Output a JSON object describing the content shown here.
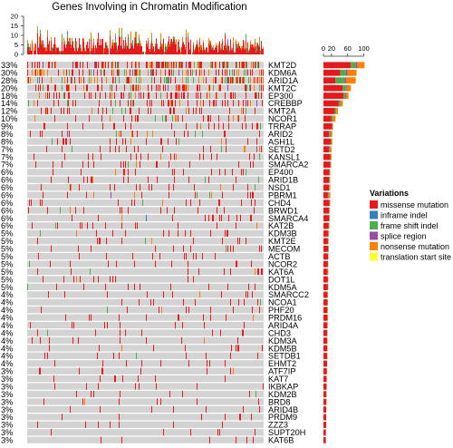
{
  "chart_data": {
    "type": "heatmap",
    "title": "Genes Involving in Chromatin Modification",
    "top_axis_ticks": [
      0,
      5,
      10,
      15,
      20
    ],
    "right_axis_ticks": [
      0,
      20,
      60,
      100
    ],
    "legend": {
      "title": "Variations",
      "placement": "right",
      "entries": [
        {
          "name": "missense mutation",
          "color": "#e41a1c"
        },
        {
          "name": "inframe indel",
          "color": "#377eb8"
        },
        {
          "name": "frame shift indel",
          "color": "#4daf4a"
        },
        {
          "name": "splice region",
          "color": "#984ea3"
        },
        {
          "name": "nonsense mutation",
          "color": "#ff7f00"
        },
        {
          "name": "translation start site",
          "color": "#ffff33"
        }
      ]
    },
    "genes": [
      {
        "gene": "KMT2D",
        "pct": "33%",
        "counts": [
          68,
          0,
          12,
          4,
          18,
          0
        ]
      },
      {
        "gene": "KDM6A",
        "pct": "30%",
        "counts": [
          42,
          0,
          14,
          4,
          22,
          0
        ]
      },
      {
        "gene": "ARID1A",
        "pct": "28%",
        "counts": [
          30,
          0,
          22,
          4,
          24,
          0
        ]
      },
      {
        "gene": "KMT2C",
        "pct": "20%",
        "counts": [
          48,
          0,
          8,
          2,
          10,
          0
        ]
      },
      {
        "gene": "EP300",
        "pct": "18%",
        "counts": [
          50,
          0,
          4,
          2,
          6,
          0
        ]
      },
      {
        "gene": "CREBBP",
        "pct": "14%",
        "counts": [
          38,
          0,
          4,
          1,
          5,
          0
        ]
      },
      {
        "gene": "KMT2A",
        "pct": "12%",
        "counts": [
          28,
          0,
          4,
          0,
          4,
          0
        ]
      },
      {
        "gene": "NCOR1",
        "pct": "10%",
        "counts": [
          20,
          0,
          4,
          0,
          6,
          0
        ]
      },
      {
        "gene": "TRRAP",
        "pct": "9%",
        "counts": [
          22,
          0,
          1,
          0,
          1,
          0
        ]
      },
      {
        "gene": "ARID2",
        "pct": "8%",
        "counts": [
          14,
          0,
          3,
          1,
          4,
          0
        ]
      },
      {
        "gene": "ASH1L",
        "pct": "8%",
        "counts": [
          18,
          0,
          2,
          0,
          2,
          0
        ]
      },
      {
        "gene": "SETD2",
        "pct": "7%",
        "counts": [
          14,
          0,
          2,
          1,
          3,
          0
        ]
      },
      {
        "gene": "KANSL1",
        "pct": "7%",
        "counts": [
          17,
          0,
          1,
          0,
          2,
          0
        ]
      },
      {
        "gene": "SMARCA2",
        "pct": "7%",
        "counts": [
          17,
          0,
          1,
          0,
          1,
          0
        ]
      },
      {
        "gene": "EP400",
        "pct": "6%",
        "counts": [
          15,
          0,
          1,
          0,
          1,
          0
        ]
      },
      {
        "gene": "ARID1B",
        "pct": "6%",
        "counts": [
          14,
          0,
          2,
          0,
          1,
          0
        ]
      },
      {
        "gene": "NSD1",
        "pct": "6%",
        "counts": [
          14,
          0,
          1,
          0,
          2,
          0
        ]
      },
      {
        "gene": "PBRM1",
        "pct": "6%",
        "counts": [
          11,
          0,
          2,
          1,
          3,
          0
        ]
      },
      {
        "gene": "CHD4",
        "pct": "6%",
        "counts": [
          15,
          0,
          1,
          0,
          1,
          0
        ]
      },
      {
        "gene": "BRWD1",
        "pct": "6%",
        "counts": [
          14,
          0,
          1,
          0,
          1,
          0
        ]
      },
      {
        "gene": "SMARCA4",
        "pct": "6%",
        "counts": [
          14,
          1,
          0,
          0,
          1,
          0
        ]
      },
      {
        "gene": "KAT2B",
        "pct": "6%",
        "counts": [
          13,
          0,
          1,
          0,
          1,
          0
        ]
      },
      {
        "gene": "KDM3B",
        "pct": "5%",
        "counts": [
          12,
          0,
          1,
          0,
          1,
          0
        ]
      },
      {
        "gene": "KMT2E",
        "pct": "5%",
        "counts": [
          11,
          0,
          1,
          0,
          1,
          0
        ]
      },
      {
        "gene": "MECOM",
        "pct": "5%",
        "counts": [
          12,
          0,
          1,
          0,
          0,
          0
        ]
      },
      {
        "gene": "ACTB",
        "pct": "5%",
        "counts": [
          12,
          0,
          0,
          0,
          0,
          0
        ]
      },
      {
        "gene": "NCOR2",
        "pct": "5%",
        "counts": [
          11,
          0,
          1,
          0,
          0,
          0
        ]
      },
      {
        "gene": "KAT6A",
        "pct": "5%",
        "counts": [
          10,
          0,
          1,
          0,
          1,
          0
        ]
      },
      {
        "gene": "DOT1L",
        "pct": "5%",
        "counts": [
          11,
          0,
          0,
          0,
          1,
          0
        ]
      },
      {
        "gene": "KDM5A",
        "pct": "5%",
        "counts": [
          11,
          0,
          1,
          0,
          0,
          0
        ]
      },
      {
        "gene": "SMARCC2",
        "pct": "4%",
        "counts": [
          10,
          0,
          0,
          0,
          1,
          0
        ]
      },
      {
        "gene": "NCOA1",
        "pct": "4%",
        "counts": [
          10,
          0,
          1,
          0,
          0,
          0
        ]
      },
      {
        "gene": "PHF20",
        "pct": "4%",
        "counts": [
          9,
          0,
          1,
          0,
          1,
          0
        ]
      },
      {
        "gene": "PRDM16",
        "pct": "4%",
        "counts": [
          10,
          0,
          0,
          0,
          1,
          0
        ]
      },
      {
        "gene": "ARID4A",
        "pct": "4%",
        "counts": [
          10,
          0,
          0,
          0,
          0,
          0
        ]
      },
      {
        "gene": "CHD3",
        "pct": "4%",
        "counts": [
          9,
          0,
          1,
          0,
          0,
          0
        ]
      },
      {
        "gene": "KDM3A",
        "pct": "4%",
        "counts": [
          9,
          0,
          0,
          0,
          1,
          0
        ]
      },
      {
        "gene": "KDM5B",
        "pct": "4%",
        "counts": [
          9,
          0,
          0,
          0,
          1,
          0
        ]
      },
      {
        "gene": "SETDB1",
        "pct": "4%",
        "counts": [
          9,
          0,
          1,
          0,
          0,
          0
        ]
      },
      {
        "gene": "EHMT2",
        "pct": "4%",
        "counts": [
          9,
          0,
          0,
          0,
          0,
          0
        ]
      },
      {
        "gene": "ATF7IP",
        "pct": "3%",
        "counts": [
          8,
          0,
          0,
          0,
          1,
          0
        ]
      },
      {
        "gene": "KAT7",
        "pct": "3%",
        "counts": [
          8,
          0,
          0,
          0,
          0,
          0
        ]
      },
      {
        "gene": "IKBKAP",
        "pct": "3%",
        "counts": [
          8,
          0,
          0,
          0,
          0,
          0
        ]
      },
      {
        "gene": "KDM2B",
        "pct": "3%",
        "counts": [
          7,
          0,
          1,
          0,
          0,
          0
        ]
      },
      {
        "gene": "BRD8",
        "pct": "3%",
        "counts": [
          7,
          0,
          0,
          0,
          1,
          0
        ]
      },
      {
        "gene": "ARID4B",
        "pct": "3%",
        "counts": [
          7,
          0,
          0,
          0,
          0,
          0
        ]
      },
      {
        "gene": "PRDM9",
        "pct": "3%",
        "counts": [
          7,
          0,
          0,
          0,
          0,
          0
        ]
      },
      {
        "gene": "ZZZ3",
        "pct": "3%",
        "counts": [
          7,
          0,
          0,
          0,
          0,
          0
        ]
      },
      {
        "gene": "SUPT20H",
        "pct": "3%",
        "counts": [
          6,
          0,
          0,
          0,
          0,
          0
        ]
      },
      {
        "gene": "KAT6B",
        "pct": "3%",
        "counts": [
          6,
          0,
          0,
          0,
          0,
          0
        ]
      }
    ]
  }
}
